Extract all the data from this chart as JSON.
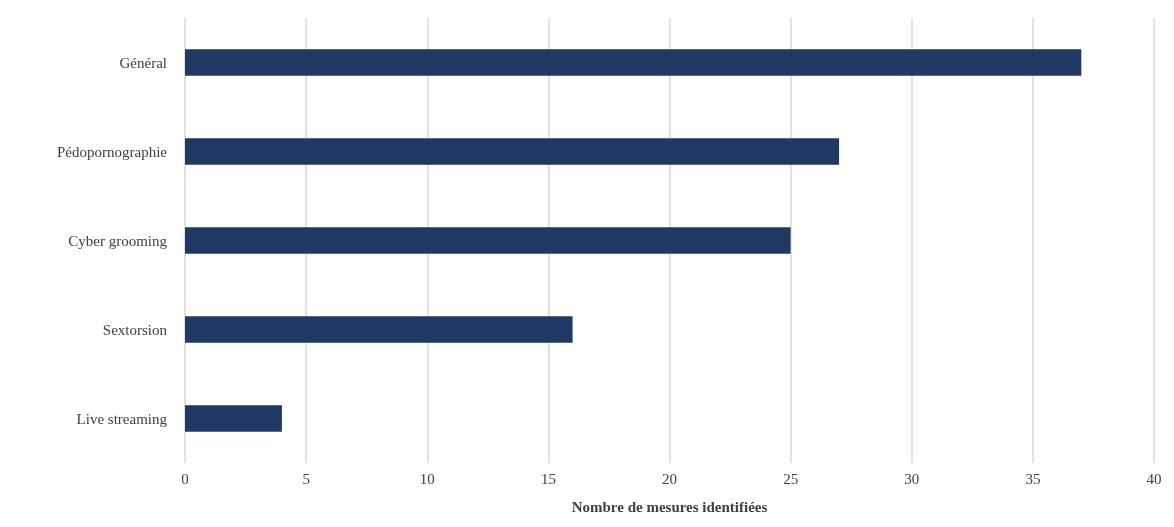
{
  "chart_data": {
    "type": "bar",
    "orientation": "horizontal",
    "xlabel": "Nombre de mesures identifiées",
    "categories": [
      "Général",
      "Pédopornographie",
      "Cyber grooming",
      "Sextorsion",
      "Live streaming"
    ],
    "values": [
      37,
      27,
      25,
      16,
      4
    ],
    "color": "#203864",
    "xlim": [
      0,
      40
    ],
    "xticks": [
      0,
      5,
      10,
      15,
      20,
      25,
      30,
      35,
      40
    ],
    "grid": "x"
  }
}
